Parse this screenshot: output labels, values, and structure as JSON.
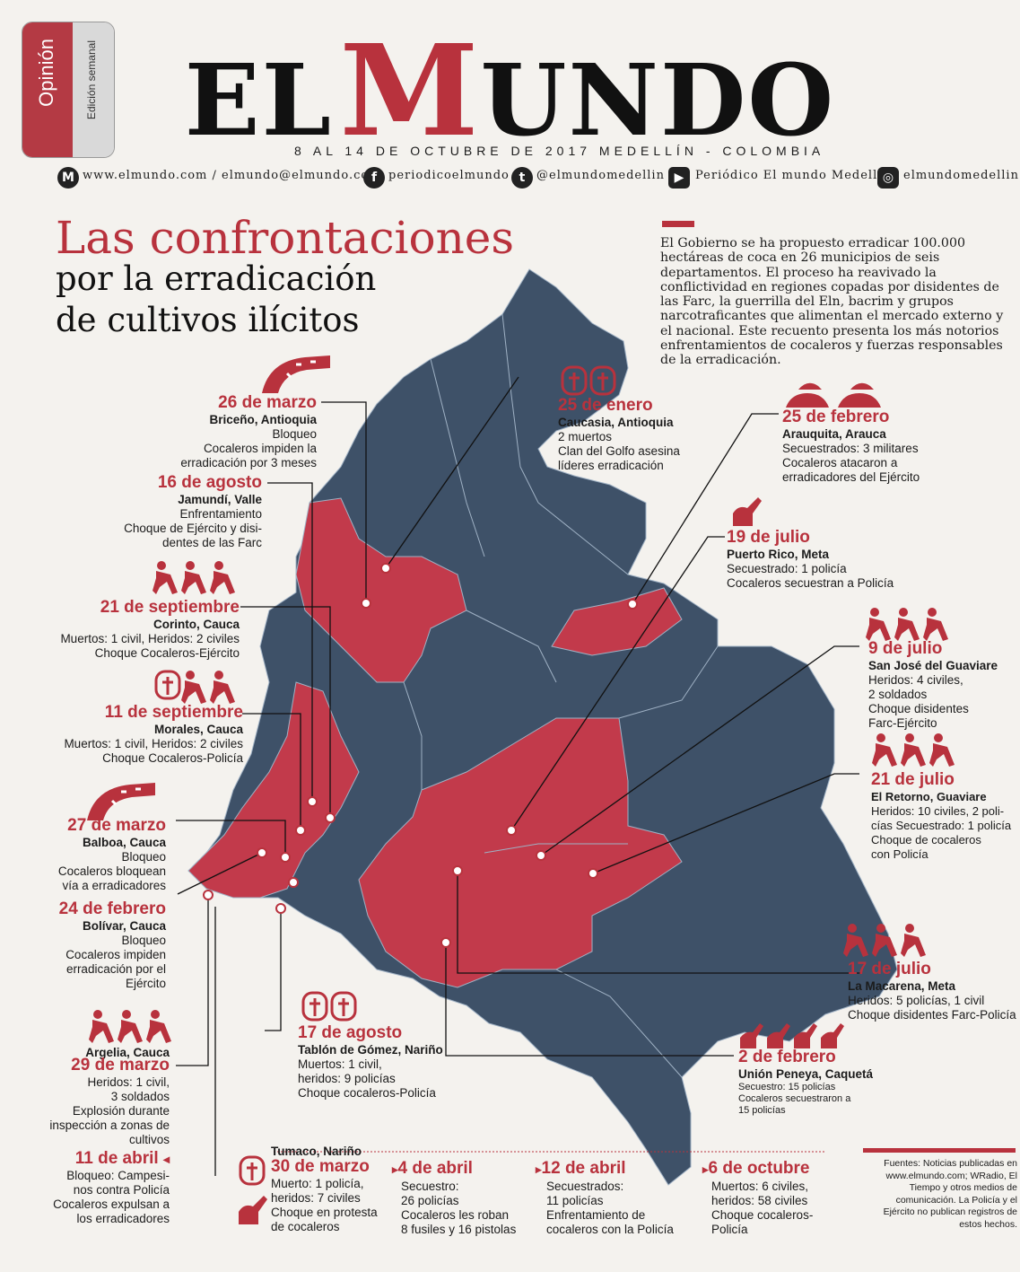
{
  "section": {
    "label": "Opinión",
    "sub": "Edición semanal"
  },
  "masthead": {
    "el": "EL",
    "m": "M",
    "undo": "UNDO"
  },
  "dateline": "8 AL 14 DE OCTUBRE DE 2017 MEDELLÍN - COLOMBIA",
  "social": {
    "web": "www.elmundo.com / elmundo@elmundo.com",
    "facebook": "periodicoelmundo",
    "twitter": "@elmundomedellin",
    "youtube": "Periódico El mundo Medellín",
    "instagram": "elmundomedellin"
  },
  "title": {
    "line1": "Las confrontaciones",
    "line2": "por la erradicación",
    "line3": "de cultivos ilícitos"
  },
  "intro": "El Gobierno se ha propuesto erradicar 100.000 hectáreas de coca en 26 municipios de seis departamentos. El proceso ha reavivado la conflictividad en regiones copadas por disidentes de las Farc, la guerrilla del Eln, bacrim y grupos narcotraficantes que alimentan el mercado externo y el nacional. Este recuento presenta los más notorios enfrentamientos de cocaleros y fuerzas responsables de la erradicación.",
  "events": {
    "e1": {
      "date": "26 de marzo",
      "place": "Briceño, Antioquia",
      "l1": "Bloqueo",
      "l2": "Cocaleros impiden la",
      "l3": "erradicación por 3 meses"
    },
    "e2": {
      "date": "16 de agosto",
      "place": "Jamundí, Valle",
      "l1": "Enfrentamiento",
      "l2": "Choque de Ejército y disi-",
      "l3": "dentes de las Farc"
    },
    "e3": {
      "date": "21 de septiembre",
      "place": "Corinto, Cauca",
      "l1": "Muertos: 1 civil, Heridos: 2 civiles",
      "l2": "Choque Cocaleros-Ejército"
    },
    "e4": {
      "date": "11 de septiembre",
      "place": "Morales, Cauca",
      "l1": "Muertos: 1 civil, Heridos: 2 civiles",
      "l2": "Choque Cocaleros-Policía"
    },
    "e5": {
      "date": "27 de marzo",
      "place": "Balboa, Cauca",
      "l1": "Bloqueo",
      "l2": "Cocaleros bloquean",
      "l3": "vía a erradicadores"
    },
    "e6": {
      "date": "24 de febrero",
      "place": "Bolívar, Cauca",
      "l1": "Bloqueo",
      "l2": "Cocaleros impiden",
      "l3": "erradicación por el",
      "l4": "Ejército"
    },
    "e7": {
      "date": "29 de marzo",
      "place": "Argelia, Cauca",
      "l1": "Heridos: 1 civil,",
      "l2": "3 soldados",
      "l3": "Explosión durante",
      "l4": "inspección a zonas de",
      "l5": "cultivos"
    },
    "e8": {
      "date": "11 de abril",
      "l1": "Bloqueo: Campesi-",
      "l2": "nos contra Policía",
      "l3": "Cocaleros expulsan a",
      "l4": "los erradicadores"
    },
    "e9": {
      "date": "25 de enero",
      "place": "Caucasia, Antioquia",
      "l1": "2 muertos",
      "l2": "Clan del Golfo asesina",
      "l3": "líderes erradicación"
    },
    "e10": {
      "date": "25 de febrero",
      "place": "Arauquita, Arauca",
      "l1": "Secuestrados: 3 militares",
      "l2": "Cocaleros atacaron a",
      "l3": "erradicadores del Ejército"
    },
    "e11": {
      "date": "19 de julio",
      "place": "Puerto Rico, Meta",
      "l1": "Secuestrado: 1 policía",
      "l2": "Cocaleros secuestran a Policía"
    },
    "e12": {
      "date": "9 de julio",
      "place": "San José del Guaviare",
      "l1": "Heridos: 4 civiles,",
      "l2": "2 soldados",
      "l3": "Choque disidentes",
      "l4": "Farc-Ejército"
    },
    "e13": {
      "date": "21 de julio",
      "place": "El Retorno, Guaviare",
      "l1": "Heridos: 10 civiles, 2 poli-",
      "l2": "cías Secuestrado: 1 policía",
      "l3": "Choque de cocaleros",
      "l4": "con Policía"
    },
    "e14": {
      "date": "17 de julio",
      "place": "La Macarena, Meta",
      "l1": "Heridos: 5 policías, 1 civil",
      "l2": "Choque disidentes Farc-Policía"
    },
    "e15": {
      "date": "17 de agosto",
      "place": "Tablón de Gómez, Nariño",
      "l1": "Muertos: 1 civil,",
      "l2": "heridos: 9 policías",
      "l3": "Choque cocaleros-Policía"
    },
    "e16": {
      "date": "2 de febrero",
      "place": "Unión Peneya, Caquetá",
      "l1": "Secuestro: 15 policías",
      "l2": "Cocaleros secuestraron a",
      "l3": "15 policías"
    },
    "e17": {
      "date": "30 de marzo",
      "place": "Tumaco, Nariño",
      "l1": "Muerto: 1 policía,",
      "l2": "heridos: 7 civiles",
      "l3": "Choque en protesta",
      "l4": "de cocaleros"
    },
    "e18": {
      "date": "4 de abril",
      "l1": "Secuestro:",
      "l2": "26 policías",
      "l3": "Cocaleros les roban",
      "l4": "8 fusiles y 16 pistolas"
    },
    "e19": {
      "date": "12 de abril",
      "l1": "Secuestrados:",
      "l2": "11 policías",
      "l3": "Enfrentamiento de",
      "l4": "cocaleros con la Policía"
    },
    "e20": {
      "date": "6 de octubre",
      "l1": "Muertos: 6 civiles,",
      "l2": "heridos: 58 civiles",
      "l3": "Choque cocaleros-",
      "l4": "Policía"
    }
  },
  "sources": "Fuentes: Noticias publicadas en www.elmundo.com; WRadio, El Tiempo y otros medios de comunicación. La Policía y el Ejército no publican registros de estos hechos.",
  "colors": {
    "accent": "#b8323d",
    "map_blue": "#3e5168",
    "map_red": "#c23a4b",
    "map_dark": "#2f3d4d"
  },
  "icons": [
    "road-icon",
    "cross-icon",
    "injured-person-icon",
    "soldier-icon"
  ]
}
